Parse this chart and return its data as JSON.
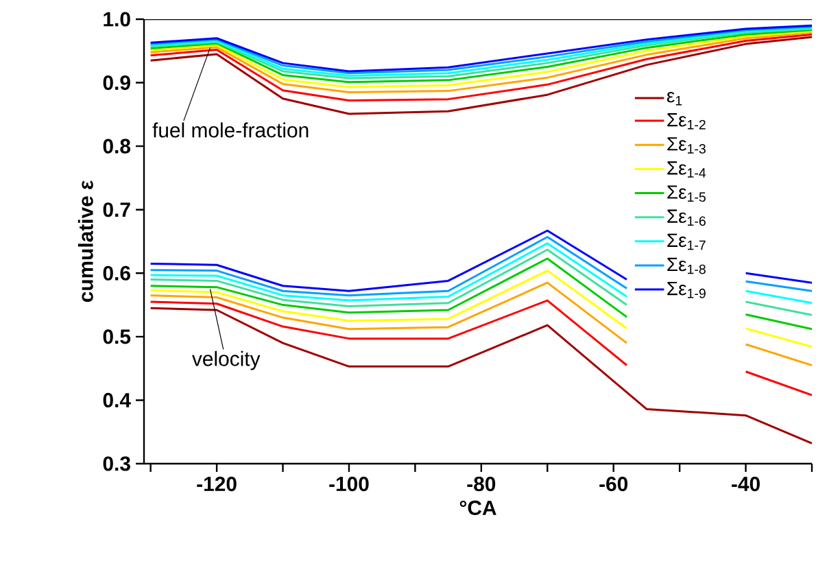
{
  "chart_data": {
    "type": "line",
    "xlabel": "°CA",
    "ylabel": "cumulative ε",
    "x": [
      -130,
      -120,
      -110,
      -100,
      -85,
      -70,
      -55,
      -40,
      -30
    ],
    "xlim": [
      -131,
      -30
    ],
    "ylim": [
      0.3,
      1.0
    ],
    "xticks": [
      {
        "value": -130,
        "label": null
      },
      -120,
      {
        "value": -110,
        "label": null
      },
      -100,
      {
        "value": -90,
        "label": null
      },
      -80,
      {
        "value": -70,
        "label": null
      },
      -60,
      {
        "value": -50,
        "label": null
      },
      -40,
      {
        "value": -30,
        "label": null
      }
    ],
    "yticks": [
      {
        "value": 0.3,
        "label": "0.3"
      },
      {
        "value": 0.4,
        "label": "0.4"
      },
      {
        "value": 0.5,
        "label": "0.5"
      },
      {
        "value": 0.6,
        "label": "0.6"
      },
      {
        "value": 0.7,
        "label": "0.7"
      },
      {
        "value": 0.8,
        "label": "0.8"
      },
      {
        "value": 0.9,
        "label": "0.9"
      },
      {
        "value": 1.0,
        "label": "1.0"
      }
    ],
    "grid": false,
    "legend": "right",
    "marker": "none",
    "line_style": "solid",
    "annotations": [
      {
        "text": "fuel mole-fraction",
        "x": -121,
        "y": 0.955
      },
      {
        "text": "velocity",
        "x": -121,
        "y": 0.575
      }
    ],
    "series": [
      {
        "name": "ε$_{1}$",
        "color": "#a00000",
        "values": [
          0.935,
          0.945,
          0.875,
          0.851,
          0.855,
          0.881,
          0.928,
          0.961,
          0.972
        ]
      },
      {
        "name": "Σε$_{1-2}$",
        "color": "#ff0000",
        "values": [
          0.943,
          0.952,
          0.888,
          0.872,
          0.874,
          0.897,
          0.937,
          0.966,
          0.976
        ]
      },
      {
        "name": "Σε$_{1-3}$",
        "color": "#ffa500",
        "values": [
          0.948,
          0.956,
          0.898,
          0.885,
          0.887,
          0.908,
          0.944,
          0.97,
          0.979
        ]
      },
      {
        "name": "Σε$_{1-4}$",
        "color": "#ffff00",
        "values": [
          0.951,
          0.959,
          0.905,
          0.893,
          0.896,
          0.917,
          0.95,
          0.973,
          0.981
        ]
      },
      {
        "name": "Σε$_{1-5}$",
        "color": "#00cc00",
        "values": [
          0.954,
          0.962,
          0.912,
          0.901,
          0.904,
          0.925,
          0.955,
          0.976,
          0.983
        ]
      },
      {
        "name": "Σε$_{1-6}$",
        "color": "#40e0a0",
        "values": [
          0.957,
          0.964,
          0.918,
          0.907,
          0.91,
          0.931,
          0.959,
          0.979,
          0.985
        ]
      },
      {
        "name": "Σε$_{1-7}$",
        "color": "#00ffff",
        "values": [
          0.959,
          0.966,
          0.922,
          0.911,
          0.915,
          0.936,
          0.962,
          0.981,
          0.987
        ]
      },
      {
        "name": "Σε$_{1-8}$",
        "color": "#00a0ff",
        "values": [
          0.961,
          0.968,
          0.927,
          0.915,
          0.92,
          0.941,
          0.965,
          0.983,
          0.988
        ]
      },
      {
        "name": "Σε$_{1-9}$",
        "color": "#0000ff",
        "values": [
          0.963,
          0.97,
          0.931,
          0.918,
          0.924,
          0.946,
          0.968,
          0.985,
          0.99
        ]
      },
      {
        "color": "#a00000",
        "values": [
          0.545,
          0.542,
          0.49,
          0.453,
          0.453,
          0.518,
          0.386,
          0.376,
          0.332
        ]
      },
      {
        "color": "#ff0000",
        "x": [
          -130,
          -120,
          -110,
          -100,
          -85,
          -70,
          -58,
          -49,
          -40,
          -30
        ],
        "values": [
          0.555,
          0.552,
          0.516,
          0.497,
          0.497,
          0.557,
          0.455,
          null,
          0.445,
          0.408
        ]
      },
      {
        "color": "#ffa500",
        "x": [
          -130,
          -120,
          -110,
          -100,
          -85,
          -70,
          -58,
          -49,
          -40,
          -30
        ],
        "values": [
          0.565,
          0.562,
          0.53,
          0.512,
          0.515,
          0.585,
          0.49,
          null,
          0.488,
          0.455
        ]
      },
      {
        "color": "#ffff00",
        "x": [
          -130,
          -120,
          -110,
          -100,
          -85,
          -70,
          -58,
          -49,
          -40,
          -30
        ],
        "values": [
          0.573,
          0.57,
          0.54,
          0.525,
          0.528,
          0.604,
          0.513,
          null,
          0.513,
          0.484
        ]
      },
      {
        "color": "#00cc00",
        "x": [
          -130,
          -120,
          -110,
          -100,
          -85,
          -70,
          -58,
          -49,
          -40,
          -30
        ],
        "values": [
          0.58,
          0.578,
          0.55,
          0.538,
          0.542,
          0.623,
          0.531,
          null,
          0.535,
          0.512
        ]
      },
      {
        "color": "#40e0a0",
        "x": [
          -130,
          -120,
          -110,
          -100,
          -85,
          -70,
          -58,
          -49,
          -40,
          -30
        ],
        "values": [
          0.59,
          0.588,
          0.558,
          0.548,
          0.553,
          0.637,
          0.55,
          null,
          0.555,
          0.534
        ]
      },
      {
        "color": "#00ffff",
        "x": [
          -130,
          -120,
          -110,
          -100,
          -85,
          -70,
          -58,
          -49,
          -40,
          -30
        ],
        "values": [
          0.597,
          0.596,
          0.565,
          0.557,
          0.563,
          0.647,
          0.563,
          null,
          0.572,
          0.553
        ]
      },
      {
        "color": "#00a0ff",
        "x": [
          -130,
          -120,
          -110,
          -100,
          -85,
          -70,
          -58,
          -49,
          -40,
          -30
        ],
        "values": [
          0.605,
          0.604,
          0.572,
          0.565,
          0.572,
          0.657,
          0.576,
          null,
          0.587,
          0.572
        ]
      },
      {
        "color": "#0000ff",
        "x": [
          -130,
          -120,
          -110,
          -100,
          -85,
          -70,
          -58,
          -49,
          -40,
          -30
        ],
        "values": [
          0.615,
          0.613,
          0.58,
          0.572,
          0.588,
          0.667,
          0.59,
          null,
          0.6,
          0.585
        ]
      }
    ]
  }
}
